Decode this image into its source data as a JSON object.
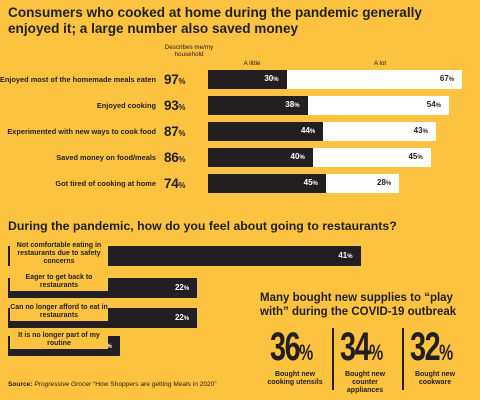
{
  "title_main": "Consumers who cooked at home during the pandemic generally enjoyed it; a large number also saved money",
  "chart_data": [
    {
      "type": "bar",
      "title": "Consumers who cooked at home during the pandemic generally enjoyed it; a large number also saved money",
      "stacked": true,
      "orientation": "horizontal",
      "total_header": "Describes me/my household",
      "categories": [
        "Enjoyed most of the homemade meals eaten",
        "Enjoyed cooking",
        "Experimented with new ways to cook food",
        "Saved money on food/meals",
        "Got tired of cooking at home"
      ],
      "totals": [
        97,
        93,
        87,
        86,
        74
      ],
      "series": [
        {
          "name": "A little",
          "values": [
            30,
            38,
            44,
            40,
            45
          ],
          "color": "#231f20"
        },
        {
          "name": "A lot",
          "values": [
            67,
            54,
            43,
            45,
            28
          ],
          "color": "#ffffff"
        }
      ],
      "value_suffix": "%"
    },
    {
      "type": "bar",
      "title": "During the pandemic, how do you feel about going to restaurants?",
      "orientation": "horizontal",
      "categories": [
        "Not comfortable eating in restaurants due to safety concerns",
        "Eager to get back to restaurants",
        "Can no longer afford to eat in restaurants",
        "It is no longer part of my routine"
      ],
      "values": [
        41,
        22,
        22,
        13
      ],
      "color": "#231f20",
      "value_suffix": "%"
    },
    {
      "type": "table",
      "title": "Many bought new supplies to “play with” during the COVID-19 outbreak",
      "items": [
        {
          "value": 36,
          "label": "Bought new cooking utensils"
        },
        {
          "value": 34,
          "label": "Bought new counter appliances"
        },
        {
          "value": 32,
          "label": "Bought new cookware"
        }
      ],
      "value_suffix": "%"
    }
  ],
  "source": {
    "prefix": "Source:",
    "publication": "Progressive Grocer",
    "title": "“How Shoppers are getting Meals in 2020”"
  }
}
